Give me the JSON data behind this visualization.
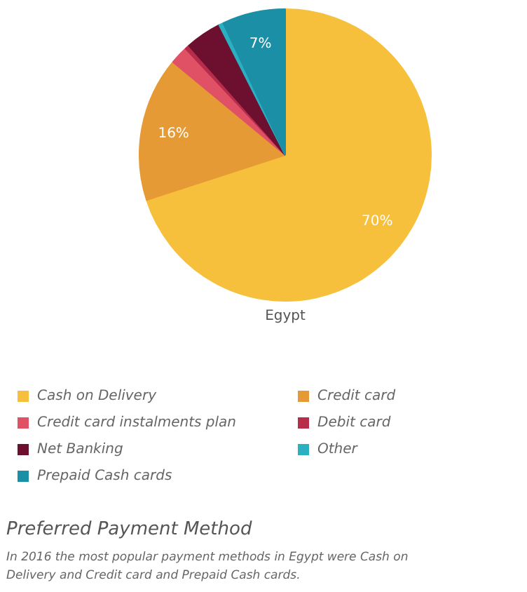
{
  "chart_data": {
    "type": "pie",
    "title": "Preferred Payment Method",
    "subtitle": "Egypt",
    "annotations": [
      "In 2016 the most popular payment methods in Egypt were Cash on Delivery and Credit card and Prepaid Cash cards."
    ],
    "categories": [
      "Cash on Delivery",
      "Credit card",
      "Credit card instalments plan",
      "Debit card",
      "Net Banking",
      "Other",
      "Prepaid Cash cards"
    ],
    "values": [
      70,
      16,
      2,
      0.5,
      4,
      0.5,
      7
    ],
    "colors": [
      "#f6c03c",
      "#e59a35",
      "#e05165",
      "#b82c4b",
      "#6d0f2e",
      "#2bb0c2",
      "#1b8fa6"
    ],
    "value_labels": [
      "70%",
      "16%",
      null,
      null,
      null,
      null,
      "7%"
    ],
    "legend": "bottom"
  }
}
